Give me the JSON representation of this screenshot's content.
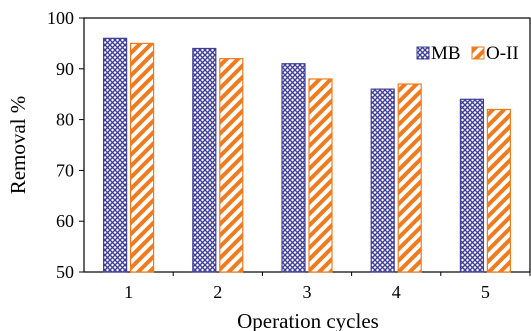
{
  "chart_data": {
    "type": "bar",
    "categories": [
      "1",
      "2",
      "3",
      "4",
      "5"
    ],
    "series": [
      {
        "name": "MB",
        "values": [
          96,
          94,
          91,
          86,
          84
        ],
        "color": "#3f3f9a",
        "pattern": "crosshatch"
      },
      {
        "name": "O-II",
        "values": [
          95,
          92,
          88,
          87,
          82
        ],
        "color": "#f07b1f",
        "pattern": "diagonal-stripes"
      }
    ],
    "title": "",
    "xlabel": "Operation cycles",
    "ylabel": "Removal %",
    "ylim": [
      50,
      100
    ],
    "yticks": [
      "50",
      "60",
      "70",
      "80",
      "90",
      "100"
    ],
    "legend_position": "top-right",
    "grid": false
  }
}
